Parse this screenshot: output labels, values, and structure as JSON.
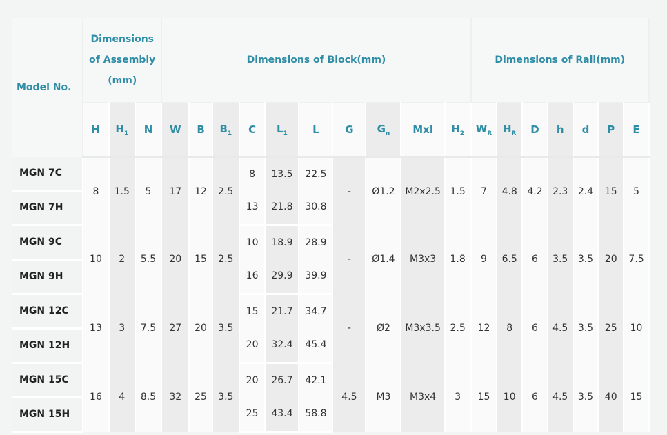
{
  "header": {
    "model_label": "Model No.",
    "assembly_label_1": "Dimensions",
    "assembly_label_2": "of Assembly",
    "assembly_label_3": "(mm)",
    "block_label": "Dimensions of Block(mm)",
    "rail_label": "Dimensions of Rail(mm)"
  },
  "columns": [
    {
      "base": "H",
      "sub": ""
    },
    {
      "base": "H",
      "sub": "1"
    },
    {
      "base": "N",
      "sub": ""
    },
    {
      "base": "W",
      "sub": ""
    },
    {
      "base": "B",
      "sub": ""
    },
    {
      "base": "B",
      "sub": "1"
    },
    {
      "base": "C",
      "sub": ""
    },
    {
      "base": "L",
      "sub": "1"
    },
    {
      "base": "L",
      "sub": ""
    },
    {
      "base": "G",
      "sub": ""
    },
    {
      "base": "G",
      "sub": "n"
    },
    {
      "base": "Mxl",
      "sub": ""
    },
    {
      "base": "H",
      "sub": "2"
    },
    {
      "base": "W",
      "sub": "R"
    },
    {
      "base": "H",
      "sub": "R"
    },
    {
      "base": "D",
      "sub": ""
    },
    {
      "base": "h",
      "sub": ""
    },
    {
      "base": "d",
      "sub": ""
    },
    {
      "base": "P",
      "sub": ""
    },
    {
      "base": "E",
      "sub": ""
    }
  ],
  "groups": [
    {
      "models": [
        "MGN 7C",
        "MGN 7H"
      ],
      "H": "8",
      "H1": "1.5",
      "N": "5",
      "W": "17",
      "B": "12",
      "B1": "2.5",
      "C": [
        "8",
        "13"
      ],
      "L1": [
        "13.5",
        "21.8"
      ],
      "L": [
        "22.5",
        "30.8"
      ],
      "G": "-",
      "Gn": "Ø1.2",
      "Mxl": "M2x2.5",
      "H2": "1.5",
      "WR": "7",
      "HR": "4.8",
      "D": "4.2",
      "h": "2.3",
      "d": "2.4",
      "P": "15",
      "E": "5"
    },
    {
      "models": [
        "MGN 9C",
        "MGN 9H"
      ],
      "H": "10",
      "H1": "2",
      "N": "5.5",
      "W": "20",
      "B": "15",
      "B1": "2.5",
      "C": [
        "10",
        "16"
      ],
      "L1": [
        "18.9",
        "29.9"
      ],
      "L": [
        "28.9",
        "39.9"
      ],
      "G": "-",
      "Gn": "Ø1.4",
      "Mxl": "M3x3",
      "H2": "1.8",
      "WR": "9",
      "HR": "6.5",
      "D": "6",
      "h": "3.5",
      "d": "3.5",
      "P": "20",
      "E": "7.5"
    },
    {
      "models": [
        "MGN 12C",
        "MGN 12H"
      ],
      "H": "13",
      "H1": "3",
      "N": "7.5",
      "W": "27",
      "B": "20",
      "B1": "3.5",
      "C": [
        "15",
        "20"
      ],
      "L1": [
        "21.7",
        "32.4"
      ],
      "L": [
        "34.7",
        "45.4"
      ],
      "G": "-",
      "Gn": "Ø2",
      "Mxl": "M3x3.5",
      "H2": "2.5",
      "WR": "12",
      "HR": "8",
      "D": "6",
      "h": "4.5",
      "d": "3.5",
      "P": "25",
      "E": "10"
    },
    {
      "models": [
        "MGN 15C",
        "MGN 15H"
      ],
      "H": "16",
      "H1": "4",
      "N": "8.5",
      "W": "32",
      "B": "25",
      "B1": "3.5",
      "C": [
        "20",
        "25"
      ],
      "L1": [
        "26.7",
        "43.4"
      ],
      "L": [
        "42.1",
        "58.8"
      ],
      "G": "4.5",
      "Gn": "M3",
      "Mxl": "M3x4",
      "H2": "3",
      "WR": "15",
      "HR": "10",
      "D": "6",
      "h": "4.5",
      "d": "3.5",
      "P": "40",
      "E": "15"
    }
  ]
}
